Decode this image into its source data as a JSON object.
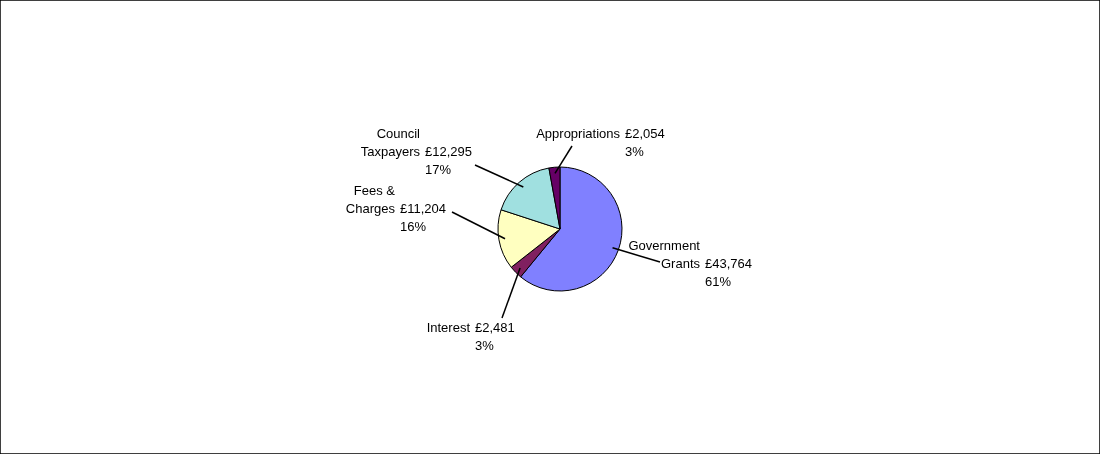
{
  "chart_data": {
    "type": "pie",
    "categories": [
      "Government Grants",
      "Interest",
      "Fees & Charges",
      "Council Taxpayers",
      "Appropriations"
    ],
    "values": [
      43764,
      2481,
      11204,
      12295,
      2054
    ],
    "colors": [
      "#8080ff",
      "#802060",
      "#ffffc0",
      "#a0e0e0",
      "#660066"
    ],
    "value_labels": [
      "£43,764 61%",
      "£2,481 3%",
      "£11,204 16%",
      "£12,295 17%",
      "£2,054 3%"
    ]
  }
}
